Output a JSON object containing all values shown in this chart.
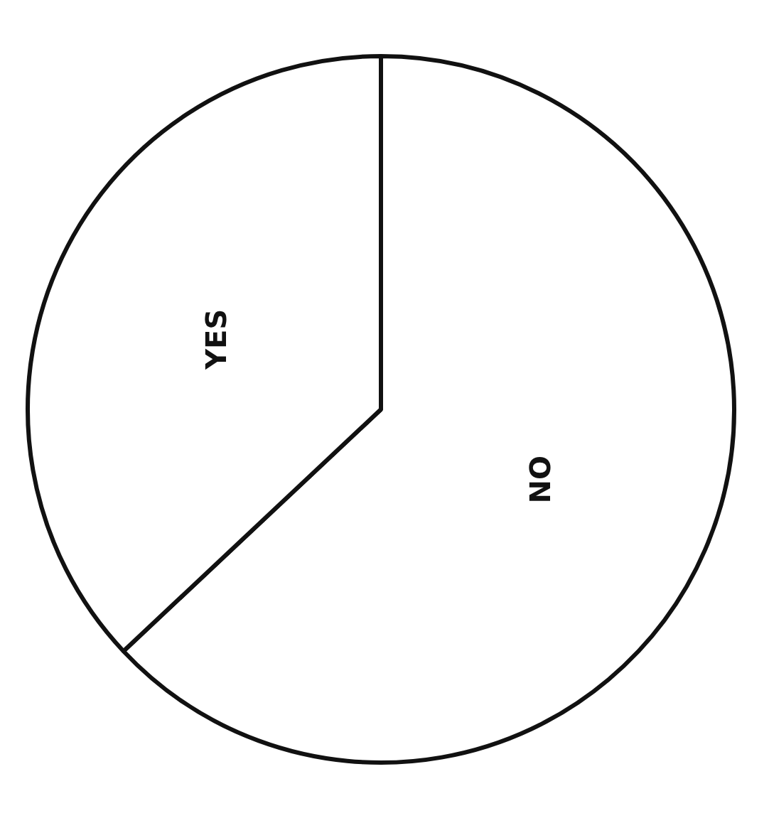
{
  "chart_data": {
    "type": "pie",
    "categories": [
      "NO",
      "YES"
    ],
    "values": [
      63,
      37
    ],
    "colors": [
      "#ffffff",
      "#ffffff"
    ]
  }
}
